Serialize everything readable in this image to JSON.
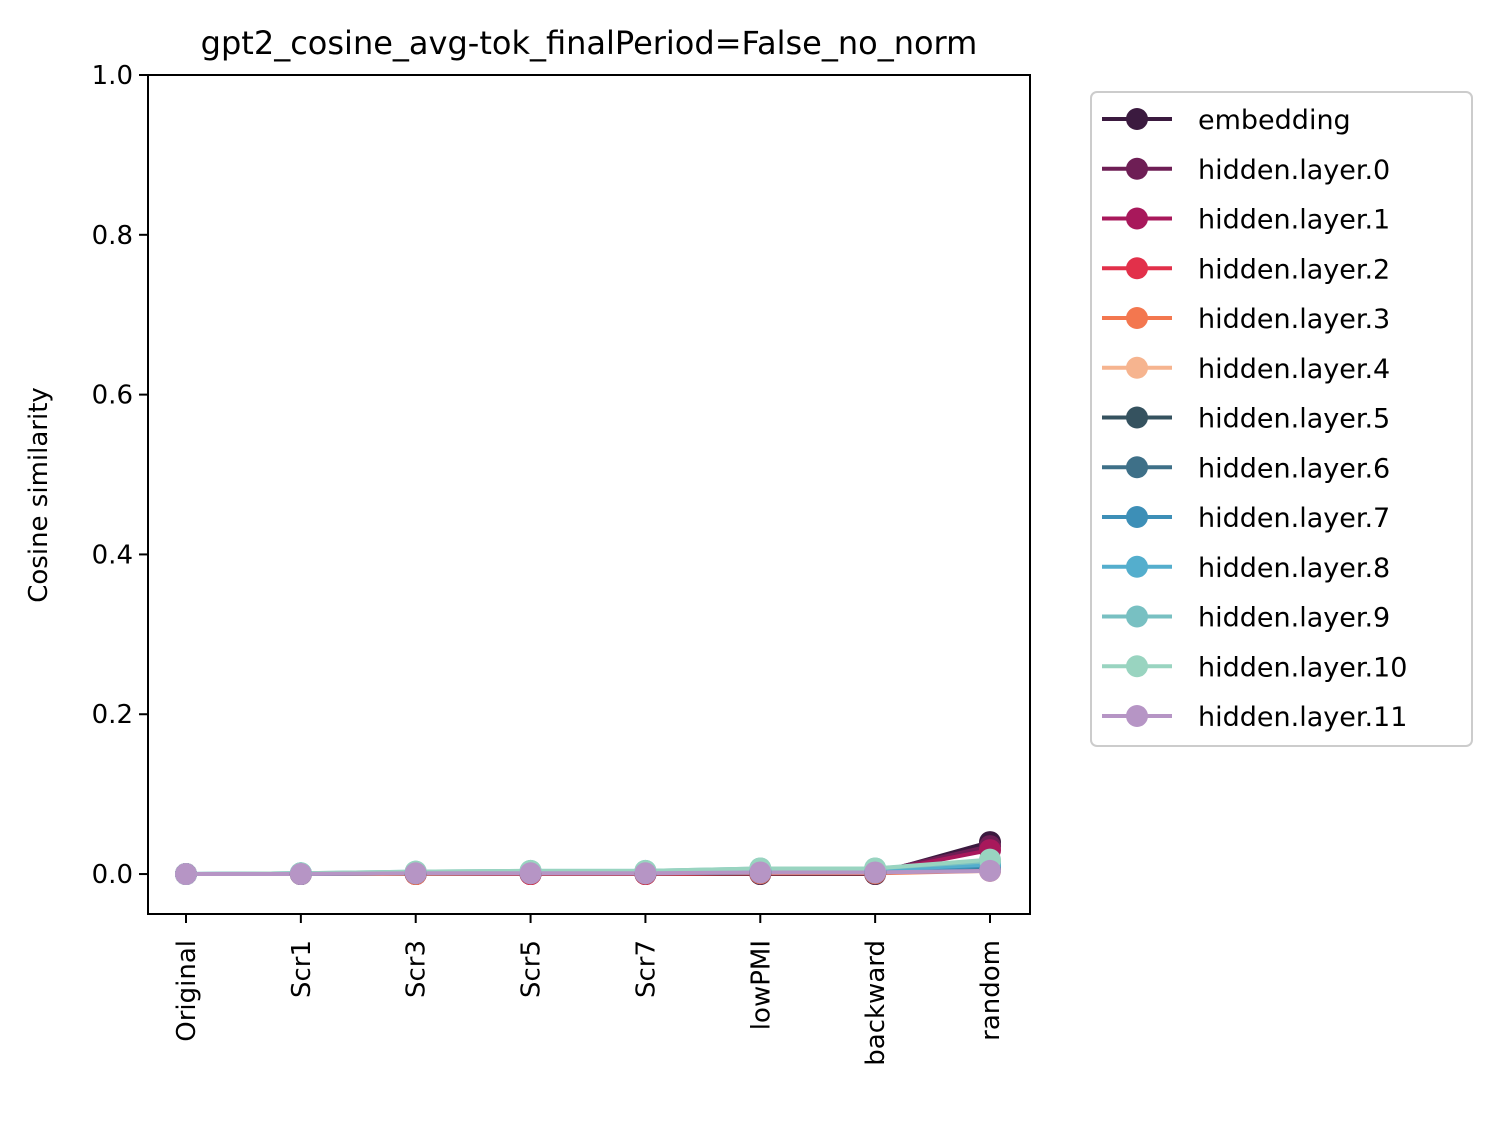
{
  "chart_data": {
    "type": "line",
    "title": "gpt2_cosine_avg-tok_finalPeriod=False_no_norm",
    "xlabel": "",
    "ylabel": "Cosine similarity",
    "categories": [
      "Original",
      "Scr1",
      "Scr3",
      "Scr5",
      "Scr7",
      "lowPMI",
      "backward",
      "random"
    ],
    "ylim": [
      -0.05,
      1.0
    ],
    "yticks": [
      "0.0",
      "0.2",
      "0.4",
      "0.6",
      "0.8",
      "1.0"
    ],
    "grid": false,
    "legend_position": "outside-right",
    "series": [
      {
        "name": "embedding",
        "color": "#3b1a3f",
        "values": [
          0.0,
          0.0,
          0.0,
          0.0,
          0.0,
          0.0,
          0.0,
          0.04
        ]
      },
      {
        "name": "hidden.layer.0",
        "color": "#6e1e55",
        "values": [
          0.0,
          0.0,
          0.0,
          0.0,
          0.0,
          0.001,
          0.002,
          0.035
        ]
      },
      {
        "name": "hidden.layer.1",
        "color": "#a8185b",
        "values": [
          0.0,
          0.0,
          0.0,
          0.0,
          0.001,
          0.001,
          0.002,
          0.03
        ]
      },
      {
        "name": "hidden.layer.2",
        "color": "#e2304a",
        "values": [
          0.0,
          0.0,
          0.0,
          0.0,
          0.0,
          0.001,
          0.001,
          0.006
        ]
      },
      {
        "name": "hidden.layer.3",
        "color": "#f3774f",
        "values": [
          0.0,
          0.0,
          0.0,
          0.001,
          0.001,
          0.001,
          0.001,
          0.004
        ]
      },
      {
        "name": "hidden.layer.4",
        "color": "#f6b48f",
        "values": [
          0.0,
          0.0,
          0.001,
          0.001,
          0.001,
          0.002,
          0.002,
          0.005
        ]
      },
      {
        "name": "hidden.layer.5",
        "color": "#35525f",
        "values": [
          0.0,
          0.0,
          0.001,
          0.001,
          0.001,
          0.002,
          0.002,
          0.006
        ]
      },
      {
        "name": "hidden.layer.6",
        "color": "#3e7088",
        "values": [
          0.0,
          0.0,
          0.001,
          0.001,
          0.001,
          0.002,
          0.002,
          0.007
        ]
      },
      {
        "name": "hidden.layer.7",
        "color": "#3d8fb7",
        "values": [
          0.0,
          0.001,
          0.002,
          0.002,
          0.002,
          0.004,
          0.004,
          0.01
        ]
      },
      {
        "name": "hidden.layer.8",
        "color": "#54aecd",
        "values": [
          0.0,
          0.001,
          0.002,
          0.003,
          0.003,
          0.005,
          0.005,
          0.012
        ]
      },
      {
        "name": "hidden.layer.9",
        "color": "#78c0c2",
        "values": [
          0.0,
          0.001,
          0.003,
          0.004,
          0.004,
          0.007,
          0.007,
          0.016
        ]
      },
      {
        "name": "hidden.layer.10",
        "color": "#99d4c0",
        "values": [
          0.0,
          0.001,
          0.003,
          0.004,
          0.004,
          0.007,
          0.007,
          0.018
        ]
      },
      {
        "name": "hidden.layer.11",
        "color": "#b695c5",
        "values": [
          0.0,
          0.0,
          0.001,
          0.001,
          0.001,
          0.002,
          0.002,
          0.004
        ]
      }
    ]
  }
}
